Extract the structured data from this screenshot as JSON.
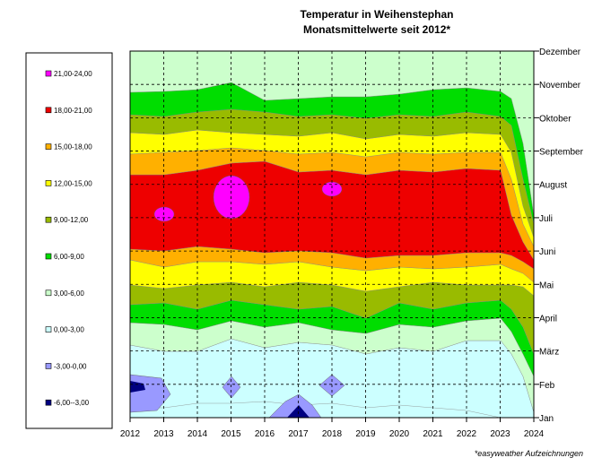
{
  "chart_data": {
    "type": "contour",
    "title": "Temperatur in Weihenstephan",
    "subtitle": "Monatsmittelwerte seit 2012*",
    "footnote": "*easyweather Aufzeichnungen",
    "x_ticks": [
      "2012",
      "2013",
      "2014",
      "2015",
      "2016",
      "2017",
      "2018",
      "2019",
      "2020",
      "2021",
      "2022",
      "2023",
      "2024"
    ],
    "y_ticks": [
      "Jan",
      "Feb",
      "März",
      "April",
      "Mai",
      "Juni",
      "Juli",
      "August",
      "September",
      "Oktober",
      "November",
      "Dezember"
    ],
    "xlim": [
      2012,
      2024
    ],
    "ylim": [
      "Jan",
      "Dezember"
    ],
    "grid": true,
    "legend_position": "left",
    "levels": [
      {
        "range": "21,00-24,00",
        "color": "#ff00ff"
      },
      {
        "range": "18,00-21,00",
        "color": "#ee0000"
      },
      {
        "range": "15,00-18,00",
        "color": "#ffb000"
      },
      {
        "range": "12,00-15,00",
        "color": "#ffff00"
      },
      {
        "range": "9,00-12,00",
        "color": "#99bb00"
      },
      {
        "range": "6,00-9,00",
        "color": "#00dd00"
      },
      {
        "range": "3,00-6,00",
        "color": "#ccffcc"
      },
      {
        "range": "0,00-3,00",
        "color": "#ccffff"
      },
      {
        "range": "-3,00-0,00",
        "color": "#9999ff"
      },
      {
        "range": "-6,00--3,00",
        "color": "#000080"
      }
    ]
  }
}
